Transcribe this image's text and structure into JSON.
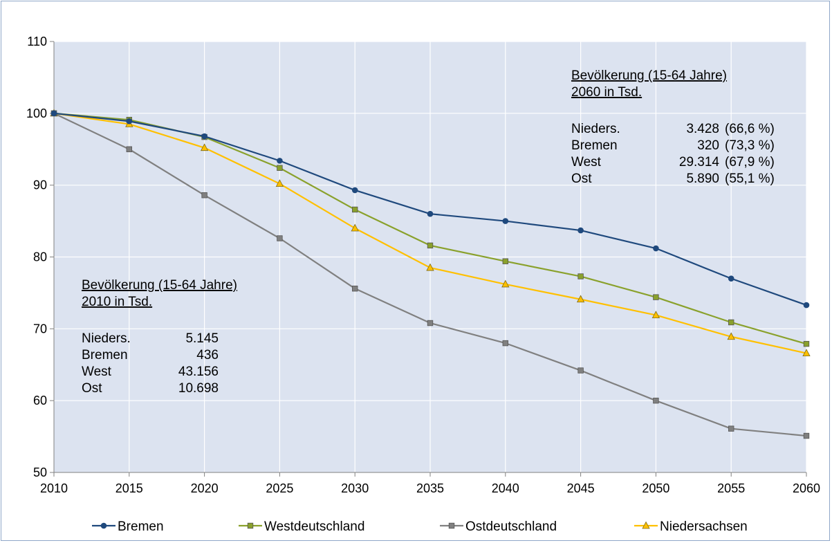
{
  "chart_data": {
    "type": "line",
    "title": "",
    "xlabel": "",
    "ylabel": "",
    "x": [
      2010,
      2015,
      2020,
      2025,
      2030,
      2035,
      2040,
      2045,
      2050,
      2055,
      2060
    ],
    "ylim": [
      50,
      110
    ],
    "yticks": [
      50,
      60,
      70,
      80,
      90,
      100,
      110
    ],
    "grid": true,
    "legend_position": "bottom",
    "series": [
      {
        "name": "Bremen",
        "color": "#1f497d",
        "marker": "circle",
        "values": [
          100,
          98.9,
          96.8,
          93.4,
          89.3,
          86.0,
          85.0,
          83.7,
          81.2,
          77.0,
          73.3
        ]
      },
      {
        "name": "Westdeutschland",
        "color": "#8aa12c",
        "marker": "square",
        "values": [
          100,
          99.1,
          96.7,
          92.4,
          86.6,
          81.6,
          79.4,
          77.3,
          74.4,
          70.9,
          67.9
        ]
      },
      {
        "name": "Ostdeutschland",
        "color": "#808080",
        "marker": "square",
        "values": [
          100,
          95.0,
          88.6,
          82.6,
          75.6,
          70.8,
          68.0,
          64.2,
          60.0,
          56.1,
          55.1
        ]
      },
      {
        "name": "Niedersachsen",
        "color": "#ffc000",
        "marker": "triangle",
        "values": [
          100,
          98.5,
          95.2,
          90.2,
          84.0,
          78.5,
          76.2,
          74.1,
          71.9,
          68.9,
          66.6
        ]
      }
    ],
    "annotations": [
      {
        "position": "top-right",
        "heading": [
          "Bevölkerung (15-64 Jahre)",
          "2060 in Tsd."
        ],
        "rows": [
          {
            "label": "Nieders.",
            "value": "3.428",
            "pct": "(66,6 %)"
          },
          {
            "label": "Bremen",
            "value": "320",
            "pct": "(73,3 %)"
          },
          {
            "label": "West",
            "value": "29.314",
            "pct": "(67,9 %)"
          },
          {
            "label": "Ost",
            "value": "5.890",
            "pct": "(55,1 %)"
          }
        ]
      },
      {
        "position": "middle-left",
        "heading": [
          "Bevölkerung (15-64 Jahre)",
          "2010 in Tsd."
        ],
        "rows": [
          {
            "label": "Nieders.",
            "value": "5.145"
          },
          {
            "label": "Bremen",
            "value": "436"
          },
          {
            "label": "West",
            "value": "43.156"
          },
          {
            "label": "Ost",
            "value": "10.698"
          }
        ]
      }
    ]
  }
}
